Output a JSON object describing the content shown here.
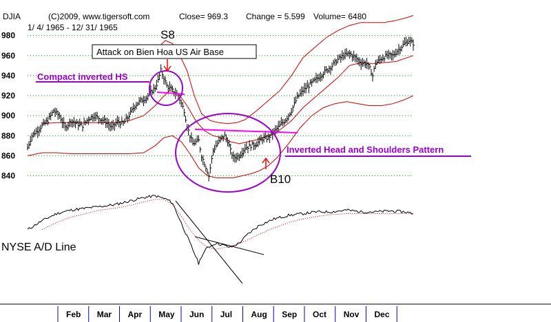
{
  "header": {
    "symbol": "DJIA",
    "copyright": "(C)2009, www.tigersoft.com",
    "close": "Close=  969.3",
    "change": "Change = 5.599",
    "volume": "Volume= 6480",
    "date_range": "1/ 4/ 1965 - 12/ 31/ 1965"
  },
  "annotations": {
    "signal_sell": "S8",
    "signal_buy": "B10",
    "event_box": "Attack on Bien Hoa US Air Base",
    "compact_hs": "Compact inverted HS",
    "inverted_hs": "Inverted Head and Shoulders Pattern",
    "adl_label": "NYSE A/D Line"
  },
  "colors": {
    "price": "#000000",
    "bands": "#cc0000",
    "annotation": "#9900cc",
    "neckline": "#ff00ff",
    "grid": "#009900",
    "axis": "#0000cc"
  },
  "chart_data": [
    {
      "type": "line",
      "series_kind": "price_bars",
      "y_ticks": [
        840,
        860,
        880,
        900,
        920,
        940,
        960,
        980
      ],
      "ylim": [
        828,
        988
      ],
      "month_labels": [
        "Feb",
        "Mar",
        "Apr",
        "May",
        "Jun",
        "Jul",
        "Aug",
        "Sep",
        "Oct",
        "Nov",
        "Dec"
      ],
      "grid": true,
      "price_anchors": [
        [
          0,
          868
        ],
        [
          3,
          880
        ],
        [
          6,
          884
        ],
        [
          10,
          890
        ],
        [
          14,
          895
        ],
        [
          18,
          905
        ],
        [
          22,
          900
        ],
        [
          26,
          888
        ],
        [
          30,
          895
        ],
        [
          34,
          892
        ],
        [
          38,
          890
        ],
        [
          42,
          897
        ],
        [
          46,
          900
        ],
        [
          50,
          897
        ],
        [
          54,
          894
        ],
        [
          58,
          888
        ],
        [
          62,
          894
        ],
        [
          66,
          892
        ],
        [
          70,
          900
        ],
        [
          74,
          910
        ],
        [
          78,
          915
        ],
        [
          82,
          918
        ],
        [
          86,
          925
        ],
        [
          88,
          928
        ],
        [
          90,
          935
        ],
        [
          92,
          945
        ],
        [
          94,
          938
        ],
        [
          96,
          930
        ],
        [
          100,
          925
        ],
        [
          104,
          920
        ],
        [
          108,
          905
        ],
        [
          110,
          890
        ],
        [
          112,
          880
        ],
        [
          114,
          872
        ],
        [
          118,
          875
        ],
        [
          120,
          860
        ],
        [
          124,
          845
        ],
        [
          125,
          840
        ],
        [
          126,
          848
        ],
        [
          128,
          865
        ],
        [
          130,
          870
        ],
        [
          134,
          878
        ],
        [
          136,
          880
        ],
        [
          138,
          875
        ],
        [
          140,
          865
        ],
        [
          142,
          858
        ],
        [
          146,
          860
        ],
        [
          150,
          868
        ],
        [
          154,
          870
        ],
        [
          158,
          872
        ],
        [
          162,
          877
        ],
        [
          166,
          878
        ],
        [
          170,
          884
        ],
        [
          174,
          890
        ],
        [
          178,
          896
        ],
        [
          182,
          905
        ],
        [
          186,
          918
        ],
        [
          190,
          925
        ],
        [
          194,
          930
        ],
        [
          198,
          935
        ],
        [
          202,
          940
        ],
        [
          206,
          945
        ],
        [
          210,
          950
        ],
        [
          214,
          956
        ],
        [
          218,
          960
        ],
        [
          222,
          962
        ],
        [
          226,
          958
        ],
        [
          230,
          953
        ],
        [
          234,
          952
        ],
        [
          236,
          947
        ],
        [
          238,
          940
        ],
        [
          240,
          952
        ],
        [
          244,
          957
        ],
        [
          248,
          960
        ],
        [
          252,
          960
        ],
        [
          256,
          966
        ],
        [
          260,
          972
        ],
        [
          263,
          975
        ],
        [
          266,
          972
        ]
      ],
      "bands": {
        "upper": [
          [
            90,
            968
          ],
          [
            95,
            975
          ],
          [
            100,
            972
          ],
          [
            105,
            960
          ],
          [
            110,
            945
          ],
          [
            115,
            920
          ],
          [
            120,
            902
          ],
          [
            126,
            895
          ],
          [
            132,
            893
          ],
          [
            138,
            892
          ],
          [
            144,
            893
          ],
          [
            150,
            896
          ],
          [
            158,
            905
          ],
          [
            166,
            915
          ],
          [
            174,
            925
          ],
          [
            182,
            940
          ],
          [
            190,
            958
          ],
          [
            198,
            968
          ],
          [
            206,
            978
          ],
          [
            214,
            985
          ],
          [
            222,
            990
          ],
          [
            230,
            993
          ],
          [
            238,
            993
          ],
          [
            246,
            993
          ],
          [
            254,
            995
          ],
          [
            262,
            998
          ],
          [
            266,
            1000
          ]
        ],
        "middle": [
          [
            10,
            892
          ],
          [
            20,
            893
          ],
          [
            30,
            893
          ],
          [
            40,
            893
          ],
          [
            50,
            893
          ],
          [
            60,
            893
          ],
          [
            70,
            895
          ],
          [
            80,
            900
          ],
          [
            88,
            910
          ],
          [
            93,
            918
          ],
          [
            98,
            925
          ],
          [
            104,
            922
          ],
          [
            110,
            910
          ],
          [
            116,
            895
          ],
          [
            122,
            885
          ],
          [
            128,
            880
          ],
          [
            134,
            878
          ],
          [
            140,
            874
          ],
          [
            146,
            872
          ],
          [
            152,
            874
          ],
          [
            158,
            876
          ],
          [
            164,
            879
          ],
          [
            170,
            882
          ],
          [
            176,
            888
          ],
          [
            182,
            895
          ],
          [
            190,
            908
          ],
          [
            198,
            918
          ],
          [
            206,
            928
          ],
          [
            214,
            938
          ],
          [
            222,
            950
          ],
          [
            230,
            953
          ],
          [
            238,
            952
          ],
          [
            246,
            953
          ],
          [
            254,
            954
          ],
          [
            262,
            958
          ],
          [
            266,
            960
          ]
        ],
        "lower": [
          [
            0,
            860
          ],
          [
            10,
            863
          ],
          [
            20,
            863
          ],
          [
            30,
            862
          ],
          [
            40,
            862
          ],
          [
            50,
            862
          ],
          [
            60,
            862
          ],
          [
            70,
            862
          ],
          [
            80,
            863
          ],
          [
            88,
            870
          ],
          [
            94,
            878
          ],
          [
            100,
            880
          ],
          [
            106,
            874
          ],
          [
            112,
            862
          ],
          [
            118,
            848
          ],
          [
            124,
            840
          ],
          [
            130,
            838
          ],
          [
            136,
            838
          ],
          [
            142,
            838
          ],
          [
            148,
            840
          ],
          [
            154,
            842
          ],
          [
            160,
            845
          ],
          [
            166,
            850
          ],
          [
            172,
            858
          ],
          [
            180,
            872
          ],
          [
            188,
            888
          ],
          [
            196,
            900
          ],
          [
            204,
            908
          ],
          [
            212,
            912
          ],
          [
            220,
            914
          ],
          [
            228,
            912
          ],
          [
            236,
            910
          ],
          [
            244,
            910
          ],
          [
            252,
            912
          ],
          [
            260,
            916
          ],
          [
            266,
            920
          ]
        ]
      }
    },
    {
      "type": "line",
      "name": "NYSE A/D Line",
      "adl_anchors": [
        [
          0,
          10
        ],
        [
          10,
          20
        ],
        [
          20,
          28
        ],
        [
          30,
          32
        ],
        [
          40,
          34
        ],
        [
          50,
          36
        ],
        [
          60,
          38
        ],
        [
          70,
          42
        ],
        [
          80,
          46
        ],
        [
          88,
          48
        ],
        [
          92,
          46
        ],
        [
          96,
          44
        ],
        [
          100,
          40
        ],
        [
          104,
          25
        ],
        [
          108,
          10
        ],
        [
          112,
          -5
        ],
        [
          116,
          -20
        ],
        [
          118,
          -28
        ],
        [
          120,
          -20
        ],
        [
          124,
          -10
        ],
        [
          130,
          -5
        ],
        [
          136,
          -8
        ],
        [
          140,
          -10
        ],
        [
          146,
          -5
        ],
        [
          152,
          5
        ],
        [
          160,
          15
        ],
        [
          170,
          22
        ],
        [
          180,
          26
        ],
        [
          190,
          28
        ],
        [
          200,
          30
        ],
        [
          210,
          30
        ],
        [
          220,
          32
        ],
        [
          230,
          30
        ],
        [
          240,
          30
        ],
        [
          250,
          31
        ],
        [
          260,
          30
        ],
        [
          266,
          28
        ]
      ],
      "adl_ma_anchors": [
        [
          10,
          10
        ],
        [
          20,
          18
        ],
        [
          30,
          24
        ],
        [
          40,
          28
        ],
        [
          50,
          32
        ],
        [
          60,
          34
        ],
        [
          70,
          37
        ],
        [
          80,
          41
        ],
        [
          88,
          44
        ],
        [
          94,
          44
        ],
        [
          100,
          38
        ],
        [
          106,
          25
        ],
        [
          112,
          10
        ],
        [
          118,
          -2
        ],
        [
          124,
          -10
        ],
        [
          130,
          -12
        ],
        [
          136,
          -10
        ],
        [
          142,
          -8
        ],
        [
          150,
          -3
        ],
        [
          160,
          5
        ],
        [
          170,
          12
        ],
        [
          180,
          18
        ],
        [
          190,
          22
        ],
        [
          200,
          25
        ],
        [
          210,
          27
        ],
        [
          220,
          28
        ],
        [
          230,
          28
        ],
        [
          240,
          28
        ],
        [
          250,
          28
        ],
        [
          260,
          28
        ],
        [
          266,
          28
        ]
      ]
    }
  ]
}
